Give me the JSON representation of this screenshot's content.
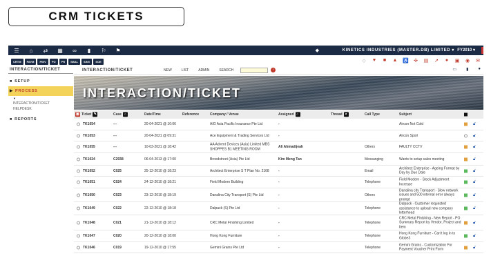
{
  "slide_title": "CRM TICKETS",
  "navbar": {
    "icons": [
      "menu-icon",
      "home-icon",
      "transfer-icon",
      "map-icon",
      "link-icon",
      "bookmark-icon",
      "flag-outline-icon",
      "flag-icon"
    ],
    "company": "KINETICS INDUSTRIES (MASTER.DB) LIMITED ▾",
    "fy": "FY2010 ▾"
  },
  "modules": [
    "CRTM",
    "PAYM",
    "PINV",
    "PO",
    "PR",
    "SBAL",
    "SINV",
    "SOE"
  ],
  "sidebar": {
    "title": "INTERACTION/TICKET",
    "sections": [
      {
        "label": "SETUP"
      },
      {
        "label": "PROCESS",
        "sub": [
          "INTERACTION/TICKET",
          "HELPDESK"
        ]
      },
      {
        "label": "REPORTS"
      }
    ]
  },
  "header": {
    "title": "INTERACTION/TICKET",
    "menu": [
      "NEW",
      "LIST",
      "ADMIN",
      "SEARCH"
    ],
    "search_value": ""
  },
  "banner_title": "INTERACTION/TICKET",
  "columns": [
    "Ticket",
    "Case",
    "Date/Time",
    "Reference",
    "Company / Venue",
    "Assigned",
    "Thread",
    "Call Type",
    "Subject"
  ],
  "colors": {
    "orange": "#e0a040",
    "green": "#5cb85c",
    "navy": "#1c2b45"
  },
  "rows": [
    {
      "ticket": "TK1054",
      "case": "---",
      "date": "20-04-2021 @ 10:06",
      "ref": "",
      "company": "AIG Asia Pacific Insurance Pte Ltd",
      "assigned": "-",
      "calltype": "",
      "subject": "Aircon Not Cold",
      "status": "orange"
    },
    {
      "ticket": "TK1053",
      "case": "---",
      "date": "20-04-2021 @ 09:31",
      "ref": "",
      "company": "Ace Equipment & Trading Services Ltd",
      "assigned": "-",
      "calltype": "",
      "subject": "Aircon Spoil",
      "status": "none"
    },
    {
      "ticket": "TK1055",
      "case": "---",
      "date": "10-03-2021 @ 18:42",
      "ref": "",
      "company": "AA Advent Devices (Asia) Limited MBS SHOPPES B1 MEETING ROOM",
      "assigned": "Ali Ahmadijeah",
      "calltype": "Others",
      "subject": "FAULTY CCTV",
      "status": "orange"
    },
    {
      "ticket": "TK1024",
      "case": "C2938",
      "date": "06-04-2013 @ 17:00",
      "ref": "",
      "company": "Broodstreet (Asia) Pte Ltd",
      "assigned": "Kim Meng Tan",
      "calltype": "Messanging",
      "subject": "Wants to setup sales meeting",
      "status": "orange"
    },
    {
      "ticket": "TK1052",
      "case": "C025",
      "date": "25-12-2010 @ 18:23",
      "ref": "",
      "company": "Architect Enterprise S T Plan No. 2168",
      "assigned": "-",
      "calltype": "Email",
      "subject": "Architect Enterprise - Ageing Format by Day by Due Date",
      "status": "green"
    },
    {
      "ticket": "TK1051",
      "case": "C024",
      "date": "24-12-2010 @ 18:21",
      "ref": "",
      "company": "Field Modern Building",
      "assigned": "-",
      "calltype": "Telephone",
      "subject": "Field Modern - Stock Adjustment Increase",
      "status": "green"
    },
    {
      "ticket": "TK1050",
      "case": "C023",
      "date": "23-12-2010 @ 18:19",
      "ref": "",
      "company": "Danalina City Transport (S) Pte Ltd",
      "assigned": "-",
      "calltype": "Others",
      "subject": "Danalina city Transport - Slow network issues and 500 internal error always prompt",
      "status": "green"
    },
    {
      "ticket": "TK1049",
      "case": "C022",
      "date": "22-12-2010 @ 18:18",
      "ref": "",
      "company": "Dalpack (S) Pte Ltd",
      "assigned": "-",
      "calltype": "Telephone",
      "subject": "Dalpack - Customer requested assistance to upload new company letterhead",
      "status": "green"
    },
    {
      "ticket": "TK1048",
      "case": "C021",
      "date": "21-12-2010 @ 18:12",
      "ref": "",
      "company": "CRC Metal Finishing Limited",
      "assigned": "-",
      "calltype": "Telephone",
      "subject": "CRC Metal Finishing - New Report - PO Summary Report by Vendor, Project and Item",
      "status": "orange"
    },
    {
      "ticket": "TK1047",
      "case": "C020",
      "date": "20-12-2010 @ 18:00",
      "ref": "",
      "company": "Hong Kong Furniture",
      "assigned": "-",
      "calltype": "Telephone",
      "subject": "Hong Kong Furniture - Can't log in to Globe3",
      "status": "green"
    },
    {
      "ticket": "TK1046",
      "case": "C019",
      "date": "19-12-2010 @ 17:55",
      "ref": "",
      "company": "Gemini Grains Pte Ltd",
      "assigned": "-",
      "calltype": "Telephone",
      "subject": "Gemini Grains - Customization For Payment Voucher Print Form",
      "status": "orange"
    }
  ]
}
